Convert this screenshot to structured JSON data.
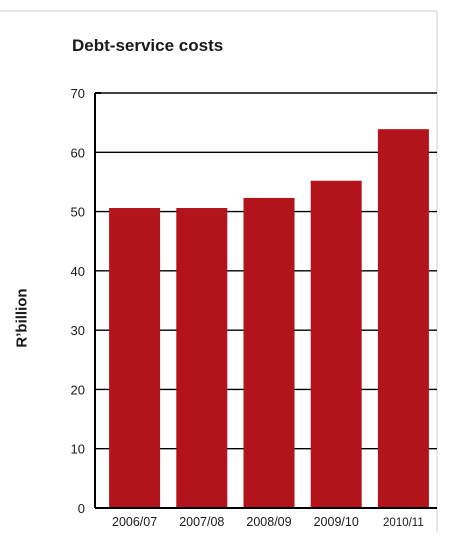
{
  "colors": {
    "bar": "#b3131b",
    "axis": "#000000",
    "grid": "#000000",
    "text": "#1a1a1a",
    "frame": "#c8c8c8"
  },
  "chart_data": {
    "type": "bar",
    "title": "Debt-service costs",
    "xlabel": "",
    "ylabel": "R’billion",
    "categories": [
      "2006/07",
      "2007/08",
      "2008/09",
      "2009/10",
      "2010/11"
    ],
    "values": [
      50.6,
      50.6,
      52.3,
      55.2,
      63.9
    ],
    "ylim": [
      0,
      70
    ],
    "yticks": [
      0,
      10,
      20,
      30,
      40,
      50,
      60,
      70
    ],
    "grid": true,
    "legend": "none"
  }
}
